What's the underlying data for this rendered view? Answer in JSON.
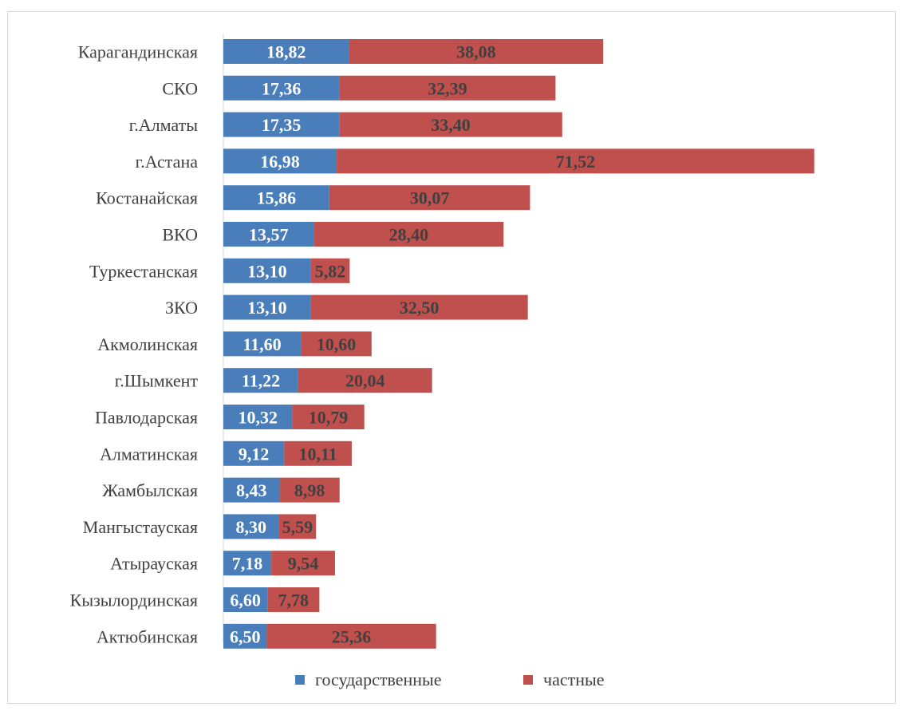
{
  "chart_data": {
    "type": "bar",
    "orientation": "horizontal",
    "stacked": true,
    "title": "",
    "xlabel": "",
    "ylabel": "",
    "grid": false,
    "legend_position": "bottom",
    "categories": [
      "Карагандинская",
      "СКО",
      "г.Алматы",
      "г.Астана",
      "Костанайская",
      "ВКО",
      "Туркестанская",
      "ЗКО",
      "Акмолинская",
      "г.Шымкент",
      "Павлодарская",
      "Алматинская",
      "Жамбылская",
      "Мангыстауская",
      "Атырауская",
      "Кызылординская",
      "Актюбинская"
    ],
    "series": [
      {
        "name": "государственные",
        "color": "#4a7ebb",
        "values": [
          18.82,
          17.36,
          17.35,
          16.98,
          15.86,
          13.57,
          13.1,
          13.1,
          11.6,
          11.22,
          10.32,
          9.12,
          8.43,
          8.3,
          7.18,
          6.6,
          6.5
        ],
        "labels": [
          "18,82",
          "17,36",
          "17,35",
          "16,98",
          "15,86",
          "13,57",
          "13,10",
          "13,10",
          "11,60",
          "11,22",
          "10,32",
          "9,12",
          "8,43",
          "8,30",
          "7,18",
          "6,60",
          "6,50"
        ]
      },
      {
        "name": "частные",
        "color": "#c0504d",
        "values": [
          38.08,
          32.39,
          33.4,
          71.52,
          30.07,
          28.4,
          5.82,
          32.5,
          10.6,
          20.04,
          10.79,
          10.11,
          8.98,
          5.59,
          9.54,
          7.78,
          25.36
        ],
        "labels": [
          "38,08",
          "32,39",
          "33,40",
          "71,52",
          "30,07",
          "28,40",
          "5,82",
          "32,50",
          "10,60",
          "20,04",
          "10,79",
          "10,11",
          "8,98",
          "5,59",
          "9,54",
          "7,78",
          "25,36"
        ]
      }
    ]
  }
}
